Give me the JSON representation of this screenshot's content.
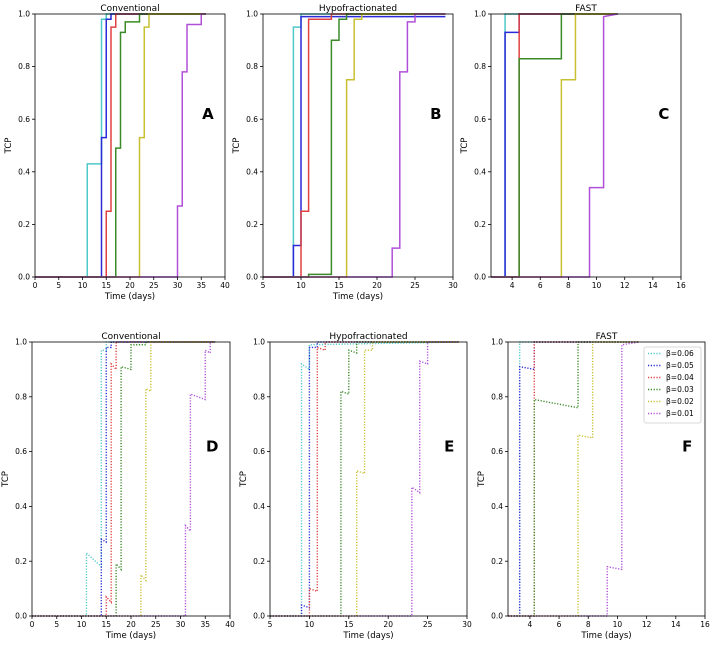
{
  "colors": [
    "#4fc8c8",
    "#2a2ad8",
    "#e04040",
    "#3a8a28",
    "#c8c030",
    "#b050d8"
  ],
  "legend": [
    "β=0.06",
    "β=0.05",
    "β=0.04",
    "β=0.03",
    "β=0.02",
    "β=0.01"
  ],
  "chart_data": [
    {
      "type": "line",
      "step": true,
      "line_style": "solid",
      "title": "Conventional",
      "panel_label": "A",
      "xlabel": "Time (days)",
      "ylabel": "TCP",
      "xlim": [
        0,
        40
      ],
      "ylim": [
        0,
        1
      ],
      "xticks": [
        0,
        5,
        10,
        15,
        20,
        25,
        30,
        35,
        40
      ],
      "yticks": [
        0.0,
        0.2,
        0.4,
        0.6,
        0.8,
        1.0
      ],
      "series": [
        {
          "x": [
            0,
            11,
            11,
            14,
            14,
            15,
            15,
            36
          ],
          "y": [
            0,
            0,
            0.43,
            0.43,
            0.98,
            0.98,
            1,
            1
          ]
        },
        {
          "x": [
            0,
            14,
            14,
            15,
            15,
            16,
            16,
            36
          ],
          "y": [
            0,
            0,
            0.53,
            0.53,
            0.98,
            0.98,
            1,
            1
          ]
        },
        {
          "x": [
            0,
            15,
            15,
            16,
            16,
            17,
            17,
            36
          ],
          "y": [
            0,
            0,
            0.25,
            0.25,
            0.95,
            0.95,
            1,
            1
          ]
        },
        {
          "x": [
            0,
            17,
            17,
            18,
            18,
            19,
            19,
            22,
            22,
            36
          ],
          "y": [
            0,
            0,
            0.49,
            0.49,
            0.93,
            0.93,
            0.97,
            0.97,
            1,
            1
          ]
        },
        {
          "x": [
            0,
            22,
            22,
            23,
            23,
            24,
            24,
            36
          ],
          "y": [
            0,
            0,
            0.53,
            0.53,
            0.95,
            0.95,
            1,
            1
          ]
        },
        {
          "x": [
            0,
            30,
            30,
            31,
            31,
            32,
            32,
            35,
            35,
            36
          ],
          "y": [
            0,
            0,
            0.27,
            0.27,
            0.78,
            0.78,
            0.96,
            0.96,
            1,
            1
          ]
        }
      ]
    },
    {
      "type": "line",
      "step": true,
      "line_style": "solid",
      "title": "Hypofractionated",
      "panel_label": "B",
      "xlabel": "Time (days)",
      "ylabel": "TCP",
      "xlim": [
        5,
        30
      ],
      "ylim": [
        0,
        1
      ],
      "xticks": [
        5,
        10,
        15,
        20,
        25,
        30
      ],
      "yticks": [
        0.0,
        0.2,
        0.4,
        0.6,
        0.8,
        1.0
      ],
      "series": [
        {
          "x": [
            5,
            9,
            9,
            10,
            10,
            29
          ],
          "y": [
            0,
            0,
            0.95,
            0.95,
            1,
            1
          ]
        },
        {
          "x": [
            5,
            9,
            9,
            10,
            10,
            29
          ],
          "y": [
            0,
            0,
            0.12,
            0.12,
            0.99,
            0.99
          ]
        },
        {
          "x": [
            5,
            10,
            10,
            11,
            11,
            14,
            14,
            29
          ],
          "y": [
            0,
            0,
            0.25,
            0.25,
            0.98,
            0.98,
            1,
            1
          ]
        },
        {
          "x": [
            5,
            11,
            11,
            14,
            14,
            15,
            15,
            16,
            16,
            29
          ],
          "y": [
            0,
            0,
            0.01,
            0.01,
            0.9,
            0.9,
            0.98,
            0.98,
            1,
            1
          ]
        },
        {
          "x": [
            5,
            16,
            16,
            17,
            17,
            18,
            18,
            29
          ],
          "y": [
            0,
            0,
            0.75,
            0.75,
            0.98,
            0.98,
            1,
            1
          ]
        },
        {
          "x": [
            5,
            22,
            22,
            23,
            23,
            24,
            24,
            25,
            25,
            29
          ],
          "y": [
            0,
            0,
            0.11,
            0.11,
            0.78,
            0.78,
            0.97,
            0.97,
            1,
            1
          ]
        }
      ]
    },
    {
      "type": "line",
      "step": true,
      "line_style": "solid",
      "title": "FAST",
      "panel_label": "C",
      "xlabel": "",
      "ylabel": "TCP",
      "xlim": [
        2.5,
        16
      ],
      "ylim": [
        0,
        1
      ],
      "xticks": [
        4,
        6,
        8,
        10,
        12,
        14,
        16
      ],
      "yticks": [
        0.0,
        0.2,
        0.4,
        0.6,
        0.8,
        1.0
      ],
      "series": [
        {
          "x": [
            2.5,
            3.5,
            3.5,
            11.5
          ],
          "y": [
            0,
            0,
            1,
            1
          ]
        },
        {
          "x": [
            2.5,
            3.5,
            3.5,
            4.5,
            4.5,
            11.5
          ],
          "y": [
            0,
            0,
            0.93,
            0.93,
            1,
            1
          ]
        },
        {
          "x": [
            2.5,
            4.5,
            4.5,
            11.5
          ],
          "y": [
            0,
            0,
            1,
            1
          ]
        },
        {
          "x": [
            2.5,
            4.5,
            4.5,
            7.5,
            7.5,
            11.5
          ],
          "y": [
            0,
            0,
            0.83,
            0.83,
            1,
            1
          ]
        },
        {
          "x": [
            2.5,
            7.5,
            7.5,
            8.5,
            8.5,
            11.5
          ],
          "y": [
            0,
            0,
            0.75,
            0.75,
            1,
            1
          ]
        },
        {
          "x": [
            2.5,
            9.5,
            9.5,
            10.5,
            10.5,
            11.5
          ],
          "y": [
            0,
            0,
            0.34,
            0.34,
            0.99,
            1
          ]
        }
      ]
    },
    {
      "type": "line",
      "step": true,
      "line_style": "dotted",
      "title": "Conventional",
      "panel_label": "D",
      "xlabel": "Time (days)",
      "ylabel": "TCP",
      "xlim": [
        0,
        40
      ],
      "ylim": [
        0,
        1
      ],
      "xticks": [
        0,
        5,
        10,
        15,
        20,
        25,
        30,
        35,
        40
      ],
      "yticks": [
        0.0,
        0.2,
        0.4,
        0.6,
        0.8,
        1.0
      ],
      "series": [
        {
          "x": [
            0,
            11,
            11,
            14,
            14,
            15,
            15,
            37
          ],
          "y": [
            0,
            0,
            0.23,
            0.18,
            0.97,
            0.97,
            1,
            1
          ]
        },
        {
          "x": [
            0,
            14,
            14,
            15,
            15,
            16,
            16,
            37
          ],
          "y": [
            0,
            0,
            0.28,
            0.27,
            0.98,
            0.98,
            1,
            1
          ]
        },
        {
          "x": [
            0,
            15,
            15,
            16,
            16,
            17,
            17,
            37
          ],
          "y": [
            0,
            0,
            0.07,
            0.05,
            0.92,
            0.9,
            1,
            1
          ]
        },
        {
          "x": [
            0,
            17,
            17,
            18,
            18,
            20,
            20,
            23,
            23,
            37
          ],
          "y": [
            0,
            0,
            0.19,
            0.17,
            0.91,
            0.9,
            0.99,
            0.99,
            1,
            1
          ]
        },
        {
          "x": [
            0,
            22,
            22,
            23,
            23,
            24,
            24,
            37
          ],
          "y": [
            0,
            0,
            0.15,
            0.13,
            0.83,
            0.82,
            1,
            1
          ]
        },
        {
          "x": [
            0,
            31,
            31,
            32,
            32,
            35,
            35,
            36,
            36,
            37
          ],
          "y": [
            0,
            0,
            0.33,
            0.31,
            0.81,
            0.79,
            0.97,
            0.96,
            1,
            1
          ]
        }
      ]
    },
    {
      "type": "line",
      "step": true,
      "line_style": "dotted",
      "title": "Hypofractionated",
      "panel_label": "E",
      "xlabel": "Time (days)",
      "ylabel": "TCP",
      "xlim": [
        5,
        30
      ],
      "ylim": [
        0,
        1
      ],
      "xticks": [
        5,
        10,
        15,
        20,
        25,
        30
      ],
      "yticks": [
        0.0,
        0.2,
        0.4,
        0.6,
        0.8,
        1.0
      ],
      "series": [
        {
          "x": [
            5,
            9,
            9,
            10,
            10,
            29
          ],
          "y": [
            0,
            0,
            0.92,
            0.9,
            0.99,
            1
          ]
        },
        {
          "x": [
            5,
            9,
            9,
            10,
            10,
            11,
            11,
            29
          ],
          "y": [
            0,
            0,
            0.04,
            0.03,
            0.98,
            0.98,
            1,
            1
          ]
        },
        {
          "x": [
            5,
            10,
            10,
            11,
            11,
            12,
            12,
            29
          ],
          "y": [
            0,
            0,
            0.1,
            0.09,
            0.98,
            0.97,
            1,
            1
          ]
        },
        {
          "x": [
            5,
            14,
            14,
            15,
            15,
            16,
            16,
            29
          ],
          "y": [
            0,
            0,
            0.82,
            0.81,
            0.97,
            0.96,
            1,
            1
          ]
        },
        {
          "x": [
            5,
            16,
            16,
            17,
            17,
            18,
            18,
            29
          ],
          "y": [
            0,
            0,
            0.53,
            0.52,
            0.97,
            0.97,
            1,
            1
          ]
        },
        {
          "x": [
            5,
            23,
            23,
            24,
            24,
            25,
            25,
            26,
            26,
            29
          ],
          "y": [
            0,
            0,
            0.47,
            0.45,
            0.93,
            0.92,
            1,
            1,
            1,
            1
          ]
        }
      ]
    },
    {
      "type": "line",
      "step": true,
      "line_style": "dotted",
      "title": "FAST",
      "panel_label": "F",
      "xlabel": "Time (days)",
      "ylabel": "TCP",
      "xlim": [
        2.5,
        16
      ],
      "ylim": [
        0,
        1
      ],
      "xticks": [
        4,
        6,
        8,
        10,
        12,
        14,
        16
      ],
      "yticks": [
        0.0,
        0.2,
        0.4,
        0.6,
        0.8,
        1.0
      ],
      "legend": "top-right",
      "series": [
        {
          "x": [
            2.5,
            3.3,
            3.3,
            11.5
          ],
          "y": [
            0,
            0,
            1,
            1
          ]
        },
        {
          "x": [
            2.5,
            3.3,
            3.3,
            4.3,
            4.3,
            11.5
          ],
          "y": [
            0,
            0,
            0.91,
            0.9,
            1,
            1
          ]
        },
        {
          "x": [
            2.5,
            4.3,
            4.3,
            11.5
          ],
          "y": [
            0,
            0,
            1,
            1
          ]
        },
        {
          "x": [
            2.5,
            4.3,
            4.3,
            7.3,
            7.3,
            11.5
          ],
          "y": [
            0,
            0,
            0.79,
            0.76,
            1,
            1
          ]
        },
        {
          "x": [
            2.5,
            7.3,
            7.3,
            8.3,
            8.3,
            11.5
          ],
          "y": [
            0,
            0,
            0.66,
            0.65,
            1,
            1
          ]
        },
        {
          "x": [
            2.5,
            9.3,
            9.3,
            10.3,
            10.3,
            11.5
          ],
          "y": [
            0,
            0,
            0.18,
            0.17,
            0.99,
            1
          ]
        }
      ]
    }
  ]
}
